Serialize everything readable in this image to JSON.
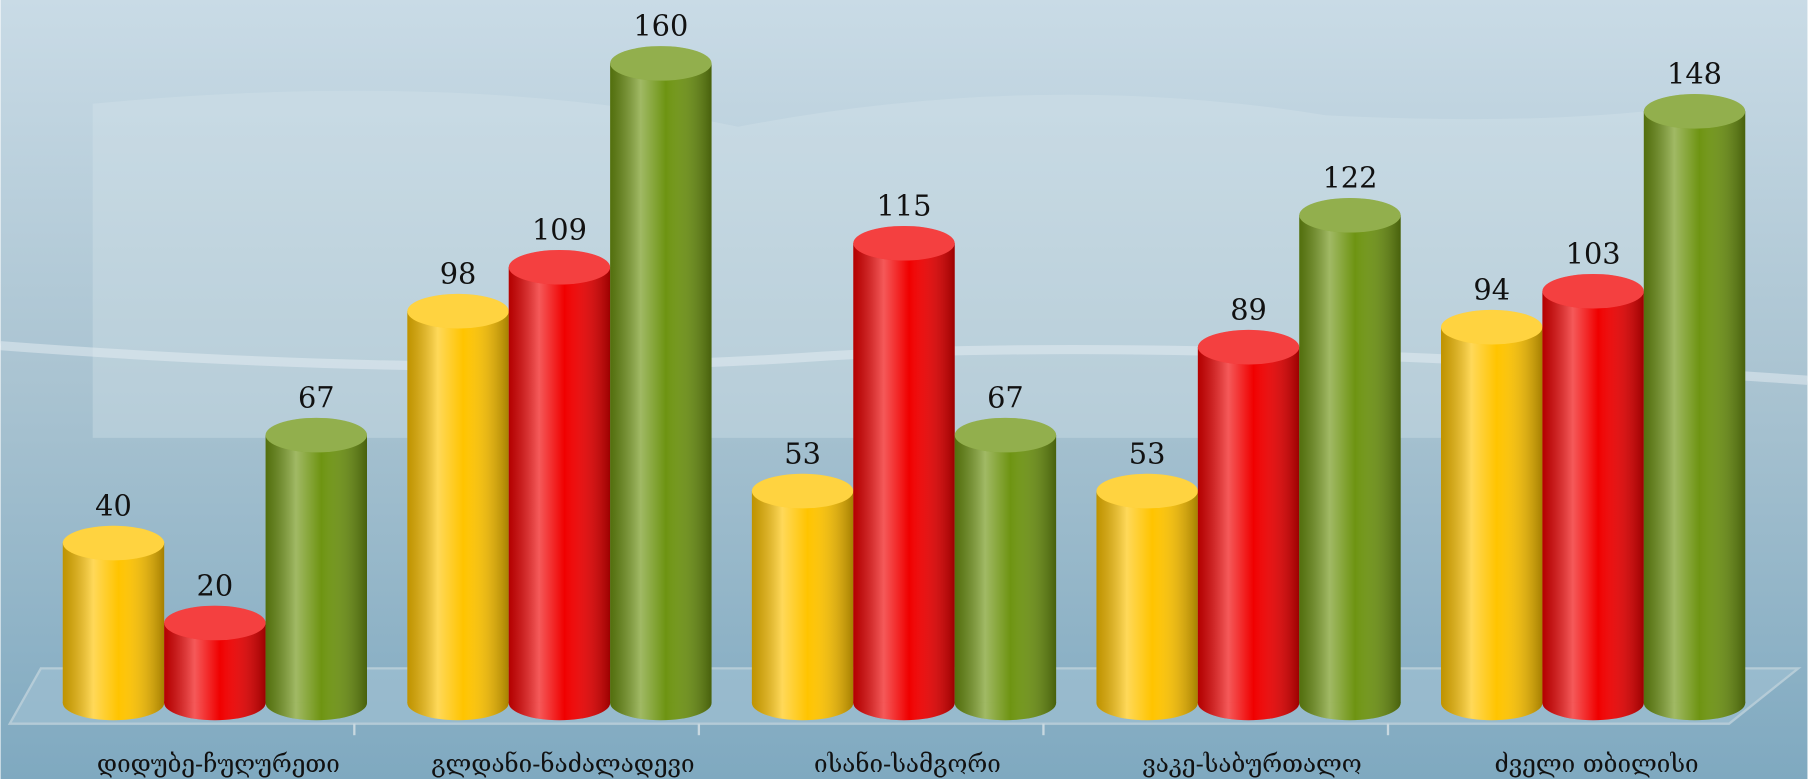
{
  "chart_data": {
    "type": "bar",
    "categories": [
      "დიდუბე-ჩუღურეთი",
      "გლდანი-ნაძალადევი",
      "ისანი-სამგორი",
      "ვაკე-საბურთალო",
      "ძველი თბილისი"
    ],
    "series": [
      {
        "color": "#ffc400",
        "values": [
          40,
          98,
          53,
          53,
          94
        ]
      },
      {
        "color": "#f00000",
        "values": [
          20,
          109,
          115,
          89,
          103
        ]
      },
      {
        "color": "#6e9412",
        "values": [
          67,
          160,
          67,
          122,
          148
        ]
      }
    ]
  }
}
